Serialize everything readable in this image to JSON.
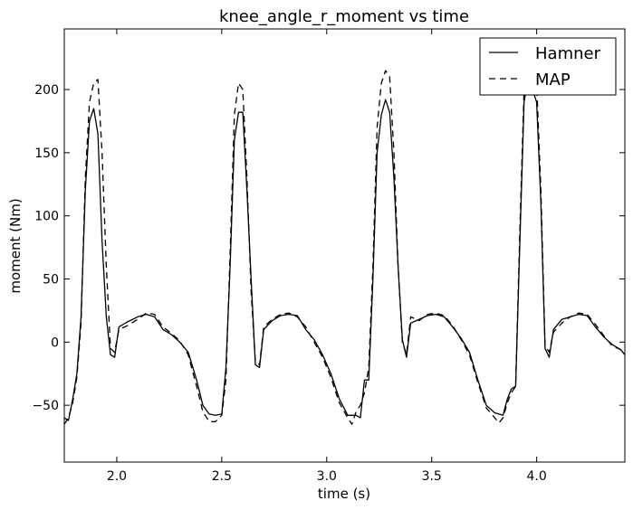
{
  "chart_data": {
    "type": "line",
    "title": "knee_angle_r_moment vs time",
    "xlabel": "time (s)",
    "ylabel": "moment (Nm)",
    "xlim": [
      1.75,
      4.42
    ],
    "ylim": [
      -95,
      248
    ],
    "xticks": [
      2.0,
      2.5,
      3.0,
      3.5,
      4.0
    ],
    "xtick_labels": [
      "2.0",
      "2.5",
      "3.0",
      "3.5",
      "4.0"
    ],
    "yticks": [
      -50,
      0,
      50,
      100,
      150,
      200
    ],
    "ytick_labels": [
      "−50",
      "0",
      "50",
      "100",
      "150",
      "200"
    ],
    "grid": false,
    "legend_position": "top-right",
    "series": [
      {
        "name": "Hamner",
        "style": "solid",
        "color": "#000000",
        "points": [
          [
            1.75,
            -60
          ],
          [
            1.77,
            -62
          ],
          [
            1.79,
            -45
          ],
          [
            1.81,
            -25
          ],
          [
            1.83,
            20
          ],
          [
            1.85,
            120
          ],
          [
            1.87,
            175
          ],
          [
            1.89,
            185
          ],
          [
            1.91,
            165
          ],
          [
            1.93,
            80
          ],
          [
            1.95,
            20
          ],
          [
            1.97,
            -10
          ],
          [
            1.99,
            -12
          ],
          [
            2.01,
            12
          ],
          [
            2.05,
            16
          ],
          [
            2.1,
            20
          ],
          [
            2.14,
            22
          ],
          [
            2.18,
            20
          ],
          [
            2.22,
            10
          ],
          [
            2.26,
            6
          ],
          [
            2.3,
            0
          ],
          [
            2.34,
            -8
          ],
          [
            2.38,
            -30
          ],
          [
            2.41,
            -50
          ],
          [
            2.44,
            -57
          ],
          [
            2.47,
            -58
          ],
          [
            2.5,
            -57
          ],
          [
            2.52,
            -20
          ],
          [
            2.54,
            60
          ],
          [
            2.56,
            160
          ],
          [
            2.58,
            182
          ],
          [
            2.6,
            182
          ],
          [
            2.62,
            120
          ],
          [
            2.64,
            50
          ],
          [
            2.66,
            -18
          ],
          [
            2.68,
            -20
          ],
          [
            2.7,
            10
          ],
          [
            2.74,
            17
          ],
          [
            2.78,
            21
          ],
          [
            2.82,
            22
          ],
          [
            2.86,
            21
          ],
          [
            2.9,
            10
          ],
          [
            2.94,
            2
          ],
          [
            2.98,
            -10
          ],
          [
            3.02,
            -25
          ],
          [
            3.06,
            -45
          ],
          [
            3.1,
            -58
          ],
          [
            3.14,
            -58
          ],
          [
            3.16,
            -60
          ],
          [
            3.18,
            -30
          ],
          [
            3.2,
            -30
          ],
          [
            3.22,
            50
          ],
          [
            3.24,
            150
          ],
          [
            3.26,
            180
          ],
          [
            3.28,
            192
          ],
          [
            3.3,
            182
          ],
          [
            3.32,
            130
          ],
          [
            3.34,
            60
          ],
          [
            3.36,
            2
          ],
          [
            3.38,
            -12
          ],
          [
            3.4,
            15
          ],
          [
            3.44,
            18
          ],
          [
            3.48,
            21
          ],
          [
            3.52,
            22
          ],
          [
            3.56,
            20
          ],
          [
            3.6,
            12
          ],
          [
            3.64,
            3
          ],
          [
            3.68,
            -8
          ],
          [
            3.72,
            -30
          ],
          [
            3.76,
            -50
          ],
          [
            3.8,
            -56
          ],
          [
            3.84,
            -58
          ],
          [
            3.86,
            -45
          ],
          [
            3.88,
            -37
          ],
          [
            3.9,
            -35
          ],
          [
            3.92,
            80
          ],
          [
            3.94,
            190
          ],
          [
            3.96,
            210
          ],
          [
            3.98,
            200
          ],
          [
            4.0,
            190
          ],
          [
            4.02,
            110
          ],
          [
            4.04,
            -5
          ],
          [
            4.06,
            -12
          ],
          [
            4.08,
            10
          ],
          [
            4.12,
            18
          ],
          [
            4.16,
            20
          ],
          [
            4.2,
            22
          ],
          [
            4.24,
            21
          ],
          [
            4.28,
            12
          ],
          [
            4.32,
            4
          ],
          [
            4.36,
            -2
          ],
          [
            4.4,
            -6
          ],
          [
            4.42,
            -10
          ]
        ]
      },
      {
        "name": "MAP",
        "style": "dashed",
        "color": "#000000",
        "points": [
          [
            1.75,
            -65
          ],
          [
            1.77,
            -60
          ],
          [
            1.79,
            -48
          ],
          [
            1.81,
            -28
          ],
          [
            1.83,
            15
          ],
          [
            1.85,
            130
          ],
          [
            1.87,
            190
          ],
          [
            1.89,
            205
          ],
          [
            1.91,
            208
          ],
          [
            1.93,
            150
          ],
          [
            1.95,
            60
          ],
          [
            1.97,
            -5
          ],
          [
            1.99,
            -8
          ],
          [
            2.01,
            10
          ],
          [
            2.05,
            13
          ],
          [
            2.1,
            18
          ],
          [
            2.14,
            23
          ],
          [
            2.18,
            22
          ],
          [
            2.22,
            12
          ],
          [
            2.26,
            7
          ],
          [
            2.3,
            1
          ],
          [
            2.34,
            -10
          ],
          [
            2.38,
            -35
          ],
          [
            2.41,
            -55
          ],
          [
            2.44,
            -63
          ],
          [
            2.47,
            -63
          ],
          [
            2.5,
            -58
          ],
          [
            2.52,
            -30
          ],
          [
            2.54,
            70
          ],
          [
            2.56,
            180
          ],
          [
            2.58,
            205
          ],
          [
            2.6,
            200
          ],
          [
            2.62,
            130
          ],
          [
            2.64,
            40
          ],
          [
            2.66,
            -15
          ],
          [
            2.68,
            -18
          ],
          [
            2.7,
            12
          ],
          [
            2.74,
            18
          ],
          [
            2.78,
            22
          ],
          [
            2.82,
            23
          ],
          [
            2.86,
            20
          ],
          [
            2.9,
            12
          ],
          [
            2.94,
            0
          ],
          [
            2.98,
            -12
          ],
          [
            3.02,
            -28
          ],
          [
            3.06,
            -48
          ],
          [
            3.1,
            -60
          ],
          [
            3.12,
            -65
          ],
          [
            3.14,
            -55
          ],
          [
            3.16,
            -50
          ],
          [
            3.18,
            -40
          ],
          [
            3.2,
            -20
          ],
          [
            3.22,
            60
          ],
          [
            3.24,
            170
          ],
          [
            3.26,
            205
          ],
          [
            3.28,
            215
          ],
          [
            3.3,
            210
          ],
          [
            3.32,
            150
          ],
          [
            3.34,
            60
          ],
          [
            3.36,
            0
          ],
          [
            3.38,
            -10
          ],
          [
            3.4,
            20
          ],
          [
            3.44,
            17
          ],
          [
            3.48,
            22
          ],
          [
            3.52,
            23
          ],
          [
            3.56,
            21
          ],
          [
            3.6,
            13
          ],
          [
            3.64,
            2
          ],
          [
            3.68,
            -10
          ],
          [
            3.72,
            -32
          ],
          [
            3.76,
            -52
          ],
          [
            3.8,
            -60
          ],
          [
            3.82,
            -64
          ],
          [
            3.84,
            -60
          ],
          [
            3.86,
            -48
          ],
          [
            3.88,
            -40
          ],
          [
            3.9,
            -35
          ],
          [
            3.92,
            90
          ],
          [
            3.94,
            200
          ],
          [
            3.96,
            225
          ],
          [
            3.98,
            215
          ],
          [
            4.0,
            205
          ],
          [
            4.02,
            120
          ],
          [
            4.04,
            -3
          ],
          [
            4.06,
            -8
          ],
          [
            4.08,
            8
          ],
          [
            4.12,
            15
          ],
          [
            4.16,
            20
          ],
          [
            4.2,
            23
          ],
          [
            4.24,
            22
          ],
          [
            4.28,
            14
          ],
          [
            4.32,
            5
          ],
          [
            4.36,
            -3
          ],
          [
            4.4,
            -6
          ],
          [
            4.42,
            -10
          ]
        ]
      }
    ]
  }
}
